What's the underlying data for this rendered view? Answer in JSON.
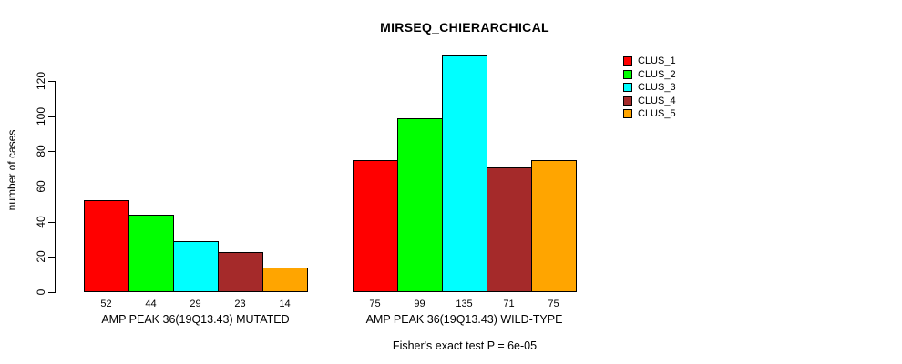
{
  "chart_data": {
    "type": "bar",
    "title": "MIRSEQ_CHIERARCHICAL",
    "ylabel": "number of cases",
    "xlabel": "",
    "yticks": [
      0,
      20,
      40,
      60,
      80,
      100,
      120
    ],
    "ylim": [
      0,
      135
    ],
    "grid": false,
    "legend_position": "right",
    "categories": [
      "AMP PEAK 36(19Q13.43) MUTATED",
      "AMP PEAK 36(19Q13.43) WILD-TYPE"
    ],
    "series": [
      {
        "name": "CLUS_1",
        "color": "#FF0000",
        "values": [
          52,
          75
        ]
      },
      {
        "name": "CLUS_2",
        "color": "#00FF00",
        "values": [
          44,
          99
        ]
      },
      {
        "name": "CLUS_3",
        "color": "#00FFFF",
        "values": [
          29,
          135
        ]
      },
      {
        "name": "CLUS_4",
        "color": "#A52A2A",
        "values": [
          23,
          71
        ]
      },
      {
        "name": "CLUS_5",
        "color": "#FFA500",
        "values": [
          14,
          75
        ]
      }
    ],
    "groups": [
      {
        "label": "AMP PEAK 36(19Q13.43) MUTATED",
        "values": [
          52,
          44,
          29,
          23,
          14
        ]
      },
      {
        "label": "AMP PEAK 36(19Q13.43) WILD-TYPE",
        "values": [
          75,
          99,
          135,
          71,
          75
        ]
      }
    ],
    "bar_value_labels": [
      [
        "52",
        "44",
        "29",
        "23",
        "14"
      ],
      [
        "75",
        "99",
        "135",
        "71",
        "75"
      ]
    ],
    "annotation": "Fisher's exact test P = 6e-05"
  },
  "legend": {
    "items": [
      {
        "label": "CLUS_1",
        "color": "#FF0000"
      },
      {
        "label": "CLUS_2",
        "color": "#00FF00"
      },
      {
        "label": "CLUS_3",
        "color": "#00FFFF"
      },
      {
        "label": "CLUS_4",
        "color": "#A52A2A"
      },
      {
        "label": "CLUS_5",
        "color": "#FFA500"
      }
    ]
  }
}
